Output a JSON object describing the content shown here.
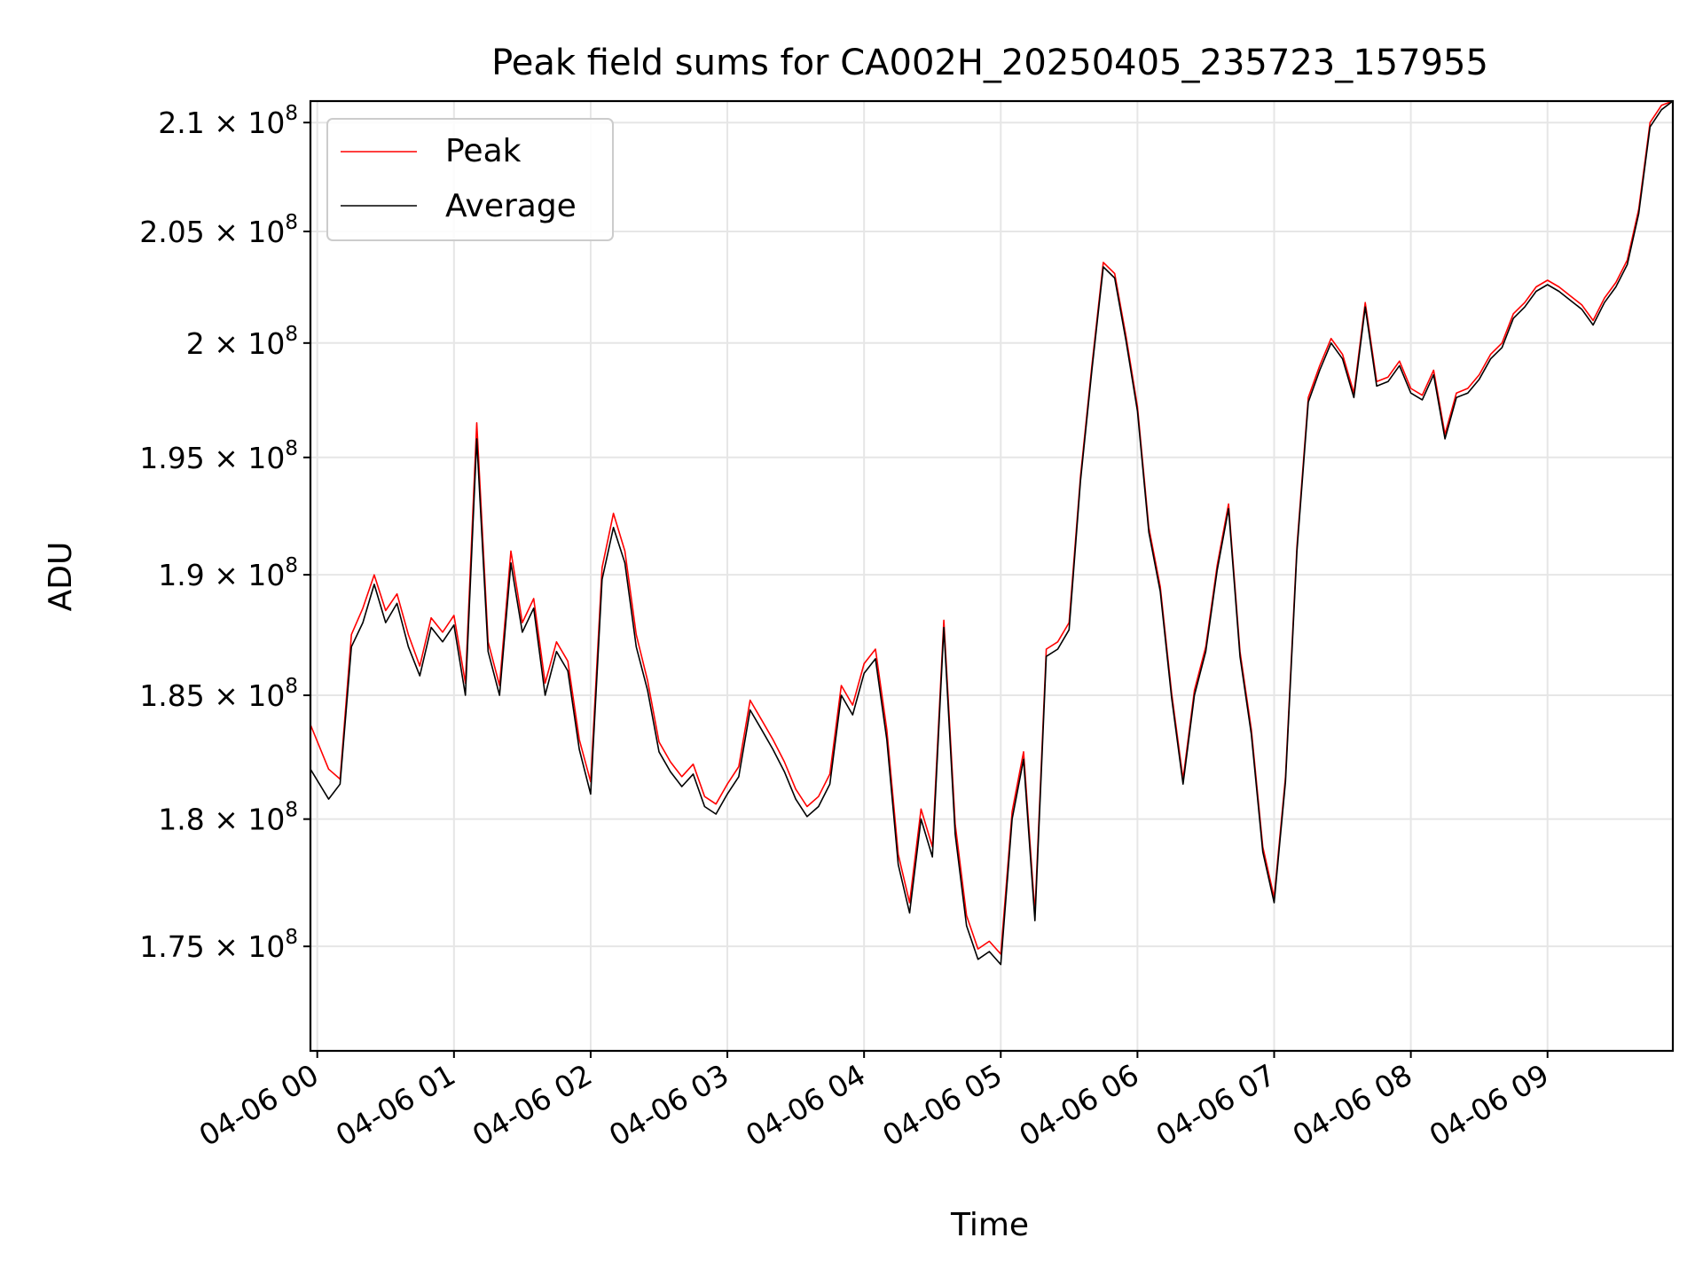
{
  "chart_data": {
    "type": "line",
    "title": "Peak field sums for CA002H_20250405_235723_157955",
    "xlabel": "Time",
    "ylabel": "ADU",
    "x_range": [
      "2025-04-05 23:57",
      "2025-04-06 09:55"
    ],
    "ylim": [
      171000000,
      211000000
    ],
    "yscale": "log",
    "grid": true,
    "legend": {
      "location": "upper-left",
      "entries": [
        "Peak",
        "Average"
      ]
    },
    "x_ticks": [
      {
        "t": "2025-04-06 00:00",
        "label": "04-06 00"
      },
      {
        "t": "2025-04-06 01:00",
        "label": "04-06 01"
      },
      {
        "t": "2025-04-06 02:00",
        "label": "04-06 02"
      },
      {
        "t": "2025-04-06 03:00",
        "label": "04-06 03"
      },
      {
        "t": "2025-04-06 04:00",
        "label": "04-06 04"
      },
      {
        "t": "2025-04-06 05:00",
        "label": "04-06 05"
      },
      {
        "t": "2025-04-06 06:00",
        "label": "04-06 06"
      },
      {
        "t": "2025-04-06 07:00",
        "label": "04-06 07"
      },
      {
        "t": "2025-04-06 08:00",
        "label": "04-06 08"
      },
      {
        "t": "2025-04-06 09:00",
        "label": "04-06 09"
      }
    ],
    "y_ticks": [
      {
        "v": 175000000,
        "mant": "1.75",
        "exp": "8"
      },
      {
        "v": 180000000,
        "mant": "1.8",
        "exp": "8"
      },
      {
        "v": 185000000,
        "mant": "1.85",
        "exp": "8"
      },
      {
        "v": 190000000,
        "mant": "1.9",
        "exp": "8"
      },
      {
        "v": 195000000,
        "mant": "1.95",
        "exp": "8"
      },
      {
        "v": 200000000,
        "mant": "2",
        "exp": "8"
      },
      {
        "v": 205000000,
        "mant": "2.05",
        "exp": "8"
      },
      {
        "v": 210000000,
        "mant": "2.1",
        "exp": "8"
      }
    ],
    "series": [
      {
        "name": "Peak",
        "color": "#ff0000",
        "x": [
          "2025-04-05 23:57",
          "2025-04-06 00:05",
          "2025-04-06 00:10",
          "2025-04-06 00:15",
          "2025-04-06 00:20",
          "2025-04-06 00:25",
          "2025-04-06 00:30",
          "2025-04-06 00:35",
          "2025-04-06 00:40",
          "2025-04-06 00:45",
          "2025-04-06 00:50",
          "2025-04-06 00:55",
          "2025-04-06 01:00",
          "2025-04-06 01:05",
          "2025-04-06 01:10",
          "2025-04-06 01:15",
          "2025-04-06 01:20",
          "2025-04-06 01:25",
          "2025-04-06 01:30",
          "2025-04-06 01:35",
          "2025-04-06 01:40",
          "2025-04-06 01:45",
          "2025-04-06 01:50",
          "2025-04-06 01:55",
          "2025-04-06 02:00",
          "2025-04-06 02:05",
          "2025-04-06 02:10",
          "2025-04-06 02:15",
          "2025-04-06 02:20",
          "2025-04-06 02:25",
          "2025-04-06 02:30",
          "2025-04-06 02:35",
          "2025-04-06 02:40",
          "2025-04-06 02:45",
          "2025-04-06 02:50",
          "2025-04-06 02:55",
          "2025-04-06 03:00",
          "2025-04-06 03:05",
          "2025-04-06 03:10",
          "2025-04-06 03:15",
          "2025-04-06 03:20",
          "2025-04-06 03:25",
          "2025-04-06 03:30",
          "2025-04-06 03:35",
          "2025-04-06 03:40",
          "2025-04-06 03:45",
          "2025-04-06 03:50",
          "2025-04-06 03:55",
          "2025-04-06 04:00",
          "2025-04-06 04:05",
          "2025-04-06 04:10",
          "2025-04-06 04:15",
          "2025-04-06 04:20",
          "2025-04-06 04:25",
          "2025-04-06 04:30",
          "2025-04-06 04:35",
          "2025-04-06 04:40",
          "2025-04-06 04:45",
          "2025-04-06 04:50",
          "2025-04-06 04:55",
          "2025-04-06 05:00",
          "2025-04-06 05:05",
          "2025-04-06 05:10",
          "2025-04-06 05:15",
          "2025-04-06 05:20",
          "2025-04-06 05:25",
          "2025-04-06 05:30",
          "2025-04-06 05:35",
          "2025-04-06 05:40",
          "2025-04-06 05:45",
          "2025-04-06 05:50",
          "2025-04-06 05:55",
          "2025-04-06 06:00",
          "2025-04-06 06:05",
          "2025-04-06 06:10",
          "2025-04-06 06:15",
          "2025-04-06 06:20",
          "2025-04-06 06:25",
          "2025-04-06 06:30",
          "2025-04-06 06:35",
          "2025-04-06 06:40",
          "2025-04-06 06:45",
          "2025-04-06 06:50",
          "2025-04-06 06:55",
          "2025-04-06 07:00",
          "2025-04-06 07:05",
          "2025-04-06 07:10",
          "2025-04-06 07:15",
          "2025-04-06 07:20",
          "2025-04-06 07:25",
          "2025-04-06 07:30",
          "2025-04-06 07:35",
          "2025-04-06 07:40",
          "2025-04-06 07:45",
          "2025-04-06 07:50",
          "2025-04-06 07:55",
          "2025-04-06 08:00",
          "2025-04-06 08:05",
          "2025-04-06 08:10",
          "2025-04-06 08:15",
          "2025-04-06 08:20",
          "2025-04-06 08:25",
          "2025-04-06 08:30",
          "2025-04-06 08:35",
          "2025-04-06 08:40",
          "2025-04-06 08:45",
          "2025-04-06 08:50",
          "2025-04-06 08:55",
          "2025-04-06 09:00",
          "2025-04-06 09:05",
          "2025-04-06 09:10",
          "2025-04-06 09:15",
          "2025-04-06 09:20",
          "2025-04-06 09:25",
          "2025-04-06 09:30",
          "2025-04-06 09:35",
          "2025-04-06 09:40",
          "2025-04-06 09:45",
          "2025-04-06 09:50",
          "2025-04-06 09:55"
        ],
        "values": [
          183800000,
          182000000,
          181600000,
          187500000,
          188600000,
          190000000,
          188500000,
          189200000,
          187500000,
          186200000,
          188200000,
          187600000,
          188300000,
          185500000,
          196500000,
          187200000,
          185400000,
          191000000,
          188000000,
          189000000,
          185500000,
          187200000,
          186400000,
          183200000,
          181500000,
          190300000,
          192600000,
          191000000,
          187500000,
          185600000,
          183100000,
          182300000,
          181700000,
          182200000,
          180900000,
          180600000,
          181400000,
          182100000,
          184800000,
          184000000,
          183200000,
          182300000,
          181200000,
          180500000,
          180900000,
          181800000,
          185400000,
          184600000,
          186300000,
          186900000,
          183600000,
          178600000,
          176700000,
          180400000,
          178900000,
          188100000,
          179800000,
          176200000,
          174900000,
          175200000,
          174700000,
          180300000,
          182700000,
          176300000,
          186900000,
          187200000,
          188000000,
          194200000,
          199000000,
          203600000,
          203100000,
          200300000,
          197200000,
          192000000,
          189500000,
          185100000,
          181600000,
          185200000,
          187000000,
          190400000,
          193000000,
          186800000,
          183600000,
          178900000,
          176900000,
          181700000,
          191200000,
          197600000,
          199000000,
          200200000,
          199500000,
          197800000,
          201800000,
          198300000,
          198500000,
          199200000,
          198000000,
          197700000,
          198800000,
          196000000,
          197800000,
          198000000,
          198600000,
          199500000,
          200000000,
          201300000,
          201800000,
          202500000,
          202800000,
          202500000,
          202100000,
          201700000,
          201000000,
          202000000,
          202700000,
          203700000,
          206000000,
          210000000,
          210800000,
          211000000
        ]
      },
      {
        "name": "Average",
        "color": "#000000",
        "x": [
          "2025-04-05 23:57",
          "2025-04-06 00:05",
          "2025-04-06 00:10",
          "2025-04-06 00:15",
          "2025-04-06 00:20",
          "2025-04-06 00:25",
          "2025-04-06 00:30",
          "2025-04-06 00:35",
          "2025-04-06 00:40",
          "2025-04-06 00:45",
          "2025-04-06 00:50",
          "2025-04-06 00:55",
          "2025-04-06 01:00",
          "2025-04-06 01:05",
          "2025-04-06 01:10",
          "2025-04-06 01:15",
          "2025-04-06 01:20",
          "2025-04-06 01:25",
          "2025-04-06 01:30",
          "2025-04-06 01:35",
          "2025-04-06 01:40",
          "2025-04-06 01:45",
          "2025-04-06 01:50",
          "2025-04-06 01:55",
          "2025-04-06 02:00",
          "2025-04-06 02:05",
          "2025-04-06 02:10",
          "2025-04-06 02:15",
          "2025-04-06 02:20",
          "2025-04-06 02:25",
          "2025-04-06 02:30",
          "2025-04-06 02:35",
          "2025-04-06 02:40",
          "2025-04-06 02:45",
          "2025-04-06 02:50",
          "2025-04-06 02:55",
          "2025-04-06 03:00",
          "2025-04-06 03:05",
          "2025-04-06 03:10",
          "2025-04-06 03:15",
          "2025-04-06 03:20",
          "2025-04-06 03:25",
          "2025-04-06 03:30",
          "2025-04-06 03:35",
          "2025-04-06 03:40",
          "2025-04-06 03:45",
          "2025-04-06 03:50",
          "2025-04-06 03:55",
          "2025-04-06 04:00",
          "2025-04-06 04:05",
          "2025-04-06 04:10",
          "2025-04-06 04:15",
          "2025-04-06 04:20",
          "2025-04-06 04:25",
          "2025-04-06 04:30",
          "2025-04-06 04:35",
          "2025-04-06 04:40",
          "2025-04-06 04:45",
          "2025-04-06 04:50",
          "2025-04-06 04:55",
          "2025-04-06 05:00",
          "2025-04-06 05:05",
          "2025-04-06 05:10",
          "2025-04-06 05:15",
          "2025-04-06 05:20",
          "2025-04-06 05:25",
          "2025-04-06 05:30",
          "2025-04-06 05:35",
          "2025-04-06 05:40",
          "2025-04-06 05:45",
          "2025-04-06 05:50",
          "2025-04-06 05:55",
          "2025-04-06 06:00",
          "2025-04-06 06:05",
          "2025-04-06 06:10",
          "2025-04-06 06:15",
          "2025-04-06 06:20",
          "2025-04-06 06:25",
          "2025-04-06 06:30",
          "2025-04-06 06:35",
          "2025-04-06 06:40",
          "2025-04-06 06:45",
          "2025-04-06 06:50",
          "2025-04-06 06:55",
          "2025-04-06 07:00",
          "2025-04-06 07:05",
          "2025-04-06 07:10",
          "2025-04-06 07:15",
          "2025-04-06 07:20",
          "2025-04-06 07:25",
          "2025-04-06 07:30",
          "2025-04-06 07:35",
          "2025-04-06 07:40",
          "2025-04-06 07:45",
          "2025-04-06 07:50",
          "2025-04-06 07:55",
          "2025-04-06 08:00",
          "2025-04-06 08:05",
          "2025-04-06 08:10",
          "2025-04-06 08:15",
          "2025-04-06 08:20",
          "2025-04-06 08:25",
          "2025-04-06 08:30",
          "2025-04-06 08:35",
          "2025-04-06 08:40",
          "2025-04-06 08:45",
          "2025-04-06 08:50",
          "2025-04-06 08:55",
          "2025-04-06 09:00",
          "2025-04-06 09:05",
          "2025-04-06 09:10",
          "2025-04-06 09:15",
          "2025-04-06 09:20",
          "2025-04-06 09:25",
          "2025-04-06 09:30",
          "2025-04-06 09:35",
          "2025-04-06 09:40",
          "2025-04-06 09:45",
          "2025-04-06 09:50",
          "2025-04-06 09:55"
        ],
        "values": [
          182000000,
          180800000,
          181400000,
          187000000,
          188000000,
          189600000,
          188000000,
          188800000,
          187000000,
          185800000,
          187800000,
          187200000,
          187900000,
          185000000,
          195800000,
          186800000,
          185000000,
          190500000,
          187600000,
          188600000,
          185000000,
          186800000,
          186000000,
          182800000,
          181000000,
          189800000,
          192000000,
          190500000,
          187000000,
          185200000,
          182700000,
          181900000,
          181300000,
          181800000,
          180500000,
          180200000,
          181000000,
          181700000,
          184400000,
          183600000,
          182800000,
          181900000,
          180800000,
          180100000,
          180500000,
          181400000,
          185000000,
          184200000,
          185900000,
          186500000,
          183200000,
          178200000,
          176300000,
          180000000,
          178500000,
          187800000,
          179400000,
          175800000,
          174500000,
          174800000,
          174300000,
          180000000,
          182400000,
          176000000,
          186600000,
          186900000,
          187700000,
          194000000,
          198800000,
          203400000,
          202900000,
          200100000,
          197000000,
          191800000,
          189300000,
          184900000,
          181400000,
          185000000,
          186800000,
          190200000,
          192800000,
          186600000,
          183400000,
          178700000,
          176700000,
          181500000,
          191000000,
          197400000,
          198800000,
          200000000,
          199300000,
          197600000,
          201600000,
          198100000,
          198300000,
          199000000,
          197800000,
          197500000,
          198600000,
          195800000,
          197600000,
          197800000,
          198400000,
          199300000,
          199800000,
          201100000,
          201600000,
          202300000,
          202600000,
          202300000,
          201900000,
          201500000,
          200800000,
          201800000,
          202500000,
          203500000,
          205800000,
          209800000,
          210600000,
          211000000
        ]
      }
    ]
  }
}
